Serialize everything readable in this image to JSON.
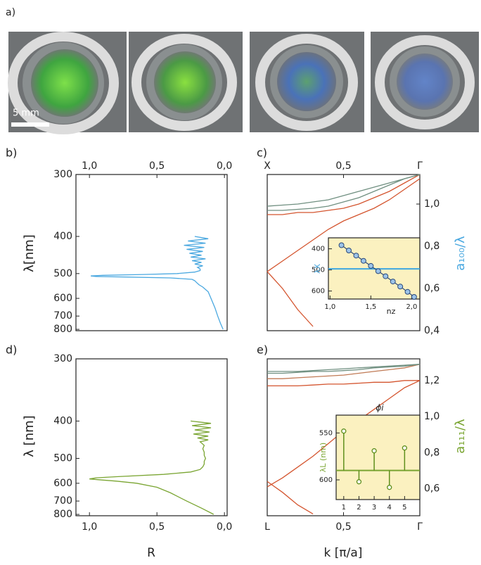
{
  "figure": {
    "panel_label": "a)",
    "scale_bar": "5 mm"
  },
  "chart_data": [
    {
      "type": "spectrum",
      "panel_label": "b)",
      "ylabel": "λ[nm]",
      "color": "#4aa8e0",
      "xaxis": "top",
      "yaxis": "left",
      "yscale": "reciprocal",
      "xlim": [
        1.1,
        -0.02
      ],
      "xticks": [
        {
          "value": 1,
          "label": "1,0"
        },
        {
          "value": 0.5,
          "label": "0,5"
        },
        {
          "value": 0,
          "label": "0,0"
        }
      ],
      "ylim": [
        812,
        300
      ],
      "yticks": [
        300,
        400,
        500,
        600,
        700,
        800
      ],
      "wavelength": [
        400,
        405,
        410,
        415,
        420,
        425,
        430,
        435,
        440,
        445,
        450,
        455,
        460,
        465,
        470,
        475,
        480,
        485,
        490,
        495,
        500,
        503,
        506,
        508,
        510,
        512,
        515,
        520,
        525,
        530,
        540,
        550,
        570,
        600,
        650,
        700,
        750,
        800
      ],
      "values": [
        0.22,
        0.12,
        0.27,
        0.14,
        0.3,
        0.15,
        0.28,
        0.16,
        0.26,
        0.17,
        0.25,
        0.14,
        0.24,
        0.17,
        0.22,
        0.16,
        0.2,
        0.18,
        0.18,
        0.22,
        0.35,
        0.6,
        0.9,
        0.99,
        0.95,
        0.7,
        0.4,
        0.24,
        0.22,
        0.21,
        0.19,
        0.16,
        0.12,
        0.1,
        0.07,
        0.05,
        0.03,
        0.01
      ]
    },
    {
      "type": "line",
      "panel_label": "c)",
      "ylabel": "a₁₀₀/λ",
      "ylabel_color": "#4aa8e0",
      "xaxis": "top",
      "yaxis": "right",
      "xlim": [
        0,
        1
      ],
      "xticks": [
        {
          "value": 0,
          "label": "X"
        },
        {
          "value": 0.5,
          "label": "0,5"
        },
        {
          "value": 1,
          "label": "Γ"
        }
      ],
      "ylim": [
        0.4,
        1.14
      ],
      "yticks": [
        {
          "value": 1,
          "label": "1,0"
        },
        {
          "value": 0.8,
          "label": "0,8"
        },
        {
          "value": 0.6,
          "label": "0,6"
        },
        {
          "value": 0.4,
          "label": "0,4"
        }
      ],
      "x": [
        0,
        0.1,
        0.2,
        0.3,
        0.4,
        0.5,
        0.6,
        0.7,
        0.8,
        0.9,
        1
      ],
      "series": [
        {
          "color": "#d4552f",
          "values": [
            0.68,
            0.73,
            0.78,
            0.83,
            0.88,
            0.92,
            0.95,
            0.98,
            1.02,
            1.07,
            1.12
          ]
        },
        {
          "color": "#d4552f",
          "values": [
            0.68,
            0.6,
            0.5,
            0.42,
            null,
            null,
            null,
            null,
            null,
            null,
            null
          ]
        },
        {
          "color": "#d4552f",
          "values": [
            0.95,
            0.95,
            0.96,
            0.96,
            0.97,
            0.98,
            1,
            1.03,
            1.06,
            1.1,
            1.14
          ]
        },
        {
          "color": "#6f8f80",
          "values": [
            0.99,
            0.995,
            1,
            1.01,
            1.02,
            1.04,
            1.06,
            1.08,
            1.1,
            1.12,
            1.14
          ]
        },
        {
          "color": "#6f8f80",
          "values": [
            0.97,
            0.97,
            0.975,
            0.98,
            0.99,
            1.01,
            1.03,
            1.06,
            1.09,
            1.12,
            1.14
          ]
        }
      ]
    },
    {
      "type": "scatter",
      "xlabel": "nz",
      "ylabel": "λX",
      "ylabel_color": "#4aa8e0",
      "color": "#2c4a7a",
      "reference_color": "#3ea7e0",
      "background": "#fbf1c0",
      "xaxis": "bottom",
      "yaxis": "left",
      "xlim": [
        0.98,
        2.1
      ],
      "xticks": [
        {
          "value": 1,
          "label": "1,0"
        },
        {
          "value": 1.5,
          "label": "1,5"
        },
        {
          "value": 2,
          "label": "2,0"
        }
      ],
      "ylim": [
        638,
        348
      ],
      "yticks": [
        400,
        500,
        600
      ],
      "reference": 495,
      "x": [
        1.14,
        1.23,
        1.32,
        1.41,
        1.5,
        1.59,
        1.68,
        1.77,
        1.86,
        1.95,
        2.03
      ],
      "values": [
        383,
        408,
        432,
        457,
        481,
        506,
        530,
        555,
        579,
        604,
        628
      ]
    },
    {
      "type": "spectrum",
      "panel_label": "d)",
      "ylabel": "λ [nm]",
      "xlabel": "R",
      "color": "#7aa532",
      "xaxis": "bottom",
      "yaxis": "left",
      "yscale": "reciprocal",
      "xlim": [
        1.1,
        -0.02
      ],
      "xticks": [
        {
          "value": 1,
          "label": "1,0"
        },
        {
          "value": 0.5,
          "label": "0,5"
        },
        {
          "value": 0,
          "label": "0,0"
        }
      ],
      "ylim": [
        812,
        300
      ],
      "yticks": [
        300,
        400,
        500,
        600,
        700,
        800
      ],
      "wavelength": [
        400,
        405,
        410,
        415,
        420,
        425,
        430,
        435,
        440,
        445,
        450,
        460,
        470,
        480,
        490,
        500,
        510,
        520,
        530,
        540,
        550,
        560,
        570,
        575,
        580,
        585,
        590,
        600,
        620,
        650,
        700,
        750,
        800
      ],
      "values": [
        0.25,
        0.1,
        0.24,
        0.1,
        0.22,
        0.11,
        0.23,
        0.12,
        0.2,
        0.12,
        0.18,
        0.15,
        0.16,
        0.15,
        0.15,
        0.14,
        0.15,
        0.15,
        0.16,
        0.18,
        0.25,
        0.45,
        0.8,
        0.95,
        1,
        0.9,
        0.8,
        0.65,
        0.5,
        0.4,
        0.28,
        0.17,
        0.08
      ]
    },
    {
      "type": "line",
      "panel_label": "e)",
      "ylabel": "a₁₁₁/λ",
      "ylabel_color": "#7aa532",
      "xlabel": "k [π/a]",
      "xaxis": "bottom",
      "yaxis": "right",
      "xlim": [
        0,
        1
      ],
      "xticks": [
        {
          "value": 0,
          "label": "L"
        },
        {
          "value": 0.5,
          "label": "0,5"
        },
        {
          "value": 1,
          "label": "Γ"
        }
      ],
      "ylim": [
        0.45,
        1.32
      ],
      "yticks": [
        {
          "value": 1.2,
          "label": "1,2"
        },
        {
          "value": 1,
          "label": "1,0"
        },
        {
          "value": 0.8,
          "label": "0,8"
        },
        {
          "value": 0.6,
          "label": "0,6"
        }
      ],
      "x": [
        0,
        0.1,
        0.2,
        0.3,
        0.4,
        0.5,
        0.6,
        0.7,
        0.8,
        0.9,
        1
      ],
      "series": [
        {
          "color": "#d4552f",
          "values": [
            0.61,
            0.66,
            0.72,
            0.78,
            0.85,
            0.92,
            0.98,
            1.04,
            1.1,
            1.16,
            1.2
          ]
        },
        {
          "color": "#d4552f",
          "values": [
            0.64,
            0.58,
            0.51,
            0.46,
            null,
            null,
            null,
            null,
            null,
            null,
            null
          ]
        },
        {
          "color": "#d4552f",
          "values": [
            1.17,
            1.17,
            1.17,
            1.175,
            1.18,
            1.18,
            1.185,
            1.19,
            1.19,
            1.2,
            1.2
          ]
        },
        {
          "color": "#c07a55",
          "values": [
            1.21,
            1.21,
            1.215,
            1.22,
            1.225,
            1.23,
            1.24,
            1.25,
            1.26,
            1.27,
            1.29
          ]
        },
        {
          "color": "#6f8f80",
          "values": [
            1.24,
            1.24,
            1.245,
            1.25,
            1.25,
            1.255,
            1.26,
            1.27,
            1.275,
            1.28,
            1.29
          ]
        },
        {
          "color": "#6f8f80",
          "values": [
            1.25,
            1.25,
            1.25,
            1.255,
            1.26,
            1.265,
            1.27,
            1.275,
            1.28,
            1.285,
            1.29
          ]
        }
      ]
    },
    {
      "type": "stem",
      "title": "ϕi",
      "ylabel": "λL (nm)",
      "ylabel_color": "#7aa532",
      "color": "#5f8f1c",
      "reference_color": "#7aa532",
      "background": "#fbf1c0",
      "xaxis": "bottom",
      "yaxis": "left",
      "xlim": [
        0.5,
        6
      ],
      "xticks": [
        1,
        2,
        3,
        4,
        5
      ],
      "ylim": [
        621,
        531
      ],
      "yticks": [
        550,
        600
      ],
      "reference": 590,
      "x": [
        1,
        2,
        3,
        4,
        5
      ],
      "values": [
        548,
        602,
        569,
        608,
        566
      ]
    }
  ]
}
